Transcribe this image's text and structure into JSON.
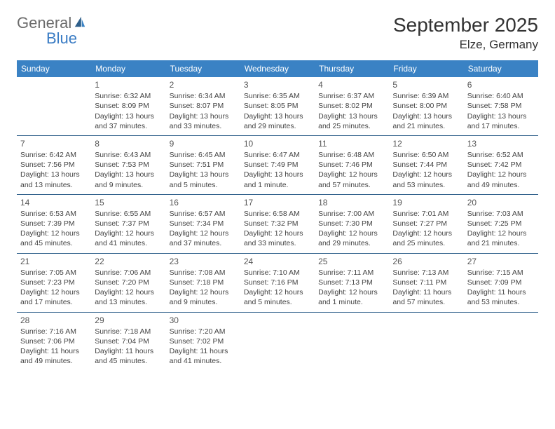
{
  "brand": {
    "part1": "General",
    "part2": "Blue"
  },
  "title": "September 2025",
  "location": "Elze, Germany",
  "colors": {
    "header_bg": "#3a82c4",
    "header_text": "#ffffff",
    "separator": "#2e5f8a",
    "body_text": "#444444",
    "brand_gray": "#6b6b6b",
    "brand_blue": "#3a7cc4"
  },
  "day_headers": [
    "Sunday",
    "Monday",
    "Tuesday",
    "Wednesday",
    "Thursday",
    "Friday",
    "Saturday"
  ],
  "weeks": [
    [
      null,
      {
        "n": "1",
        "sr": "Sunrise: 6:32 AM",
        "ss": "Sunset: 8:09 PM",
        "d1": "Daylight: 13 hours",
        "d2": "and 37 minutes."
      },
      {
        "n": "2",
        "sr": "Sunrise: 6:34 AM",
        "ss": "Sunset: 8:07 PM",
        "d1": "Daylight: 13 hours",
        "d2": "and 33 minutes."
      },
      {
        "n": "3",
        "sr": "Sunrise: 6:35 AM",
        "ss": "Sunset: 8:05 PM",
        "d1": "Daylight: 13 hours",
        "d2": "and 29 minutes."
      },
      {
        "n": "4",
        "sr": "Sunrise: 6:37 AM",
        "ss": "Sunset: 8:02 PM",
        "d1": "Daylight: 13 hours",
        "d2": "and 25 minutes."
      },
      {
        "n": "5",
        "sr": "Sunrise: 6:39 AM",
        "ss": "Sunset: 8:00 PM",
        "d1": "Daylight: 13 hours",
        "d2": "and 21 minutes."
      },
      {
        "n": "6",
        "sr": "Sunrise: 6:40 AM",
        "ss": "Sunset: 7:58 PM",
        "d1": "Daylight: 13 hours",
        "d2": "and 17 minutes."
      }
    ],
    [
      {
        "n": "7",
        "sr": "Sunrise: 6:42 AM",
        "ss": "Sunset: 7:56 PM",
        "d1": "Daylight: 13 hours",
        "d2": "and 13 minutes."
      },
      {
        "n": "8",
        "sr": "Sunrise: 6:43 AM",
        "ss": "Sunset: 7:53 PM",
        "d1": "Daylight: 13 hours",
        "d2": "and 9 minutes."
      },
      {
        "n": "9",
        "sr": "Sunrise: 6:45 AM",
        "ss": "Sunset: 7:51 PM",
        "d1": "Daylight: 13 hours",
        "d2": "and 5 minutes."
      },
      {
        "n": "10",
        "sr": "Sunrise: 6:47 AM",
        "ss": "Sunset: 7:49 PM",
        "d1": "Daylight: 13 hours",
        "d2": "and 1 minute."
      },
      {
        "n": "11",
        "sr": "Sunrise: 6:48 AM",
        "ss": "Sunset: 7:46 PM",
        "d1": "Daylight: 12 hours",
        "d2": "and 57 minutes."
      },
      {
        "n": "12",
        "sr": "Sunrise: 6:50 AM",
        "ss": "Sunset: 7:44 PM",
        "d1": "Daylight: 12 hours",
        "d2": "and 53 minutes."
      },
      {
        "n": "13",
        "sr": "Sunrise: 6:52 AM",
        "ss": "Sunset: 7:42 PM",
        "d1": "Daylight: 12 hours",
        "d2": "and 49 minutes."
      }
    ],
    [
      {
        "n": "14",
        "sr": "Sunrise: 6:53 AM",
        "ss": "Sunset: 7:39 PM",
        "d1": "Daylight: 12 hours",
        "d2": "and 45 minutes."
      },
      {
        "n": "15",
        "sr": "Sunrise: 6:55 AM",
        "ss": "Sunset: 7:37 PM",
        "d1": "Daylight: 12 hours",
        "d2": "and 41 minutes."
      },
      {
        "n": "16",
        "sr": "Sunrise: 6:57 AM",
        "ss": "Sunset: 7:34 PM",
        "d1": "Daylight: 12 hours",
        "d2": "and 37 minutes."
      },
      {
        "n": "17",
        "sr": "Sunrise: 6:58 AM",
        "ss": "Sunset: 7:32 PM",
        "d1": "Daylight: 12 hours",
        "d2": "and 33 minutes."
      },
      {
        "n": "18",
        "sr": "Sunrise: 7:00 AM",
        "ss": "Sunset: 7:30 PM",
        "d1": "Daylight: 12 hours",
        "d2": "and 29 minutes."
      },
      {
        "n": "19",
        "sr": "Sunrise: 7:01 AM",
        "ss": "Sunset: 7:27 PM",
        "d1": "Daylight: 12 hours",
        "d2": "and 25 minutes."
      },
      {
        "n": "20",
        "sr": "Sunrise: 7:03 AM",
        "ss": "Sunset: 7:25 PM",
        "d1": "Daylight: 12 hours",
        "d2": "and 21 minutes."
      }
    ],
    [
      {
        "n": "21",
        "sr": "Sunrise: 7:05 AM",
        "ss": "Sunset: 7:23 PM",
        "d1": "Daylight: 12 hours",
        "d2": "and 17 minutes."
      },
      {
        "n": "22",
        "sr": "Sunrise: 7:06 AM",
        "ss": "Sunset: 7:20 PM",
        "d1": "Daylight: 12 hours",
        "d2": "and 13 minutes."
      },
      {
        "n": "23",
        "sr": "Sunrise: 7:08 AM",
        "ss": "Sunset: 7:18 PM",
        "d1": "Daylight: 12 hours",
        "d2": "and 9 minutes."
      },
      {
        "n": "24",
        "sr": "Sunrise: 7:10 AM",
        "ss": "Sunset: 7:16 PM",
        "d1": "Daylight: 12 hours",
        "d2": "and 5 minutes."
      },
      {
        "n": "25",
        "sr": "Sunrise: 7:11 AM",
        "ss": "Sunset: 7:13 PM",
        "d1": "Daylight: 12 hours",
        "d2": "and 1 minute."
      },
      {
        "n": "26",
        "sr": "Sunrise: 7:13 AM",
        "ss": "Sunset: 7:11 PM",
        "d1": "Daylight: 11 hours",
        "d2": "and 57 minutes."
      },
      {
        "n": "27",
        "sr": "Sunrise: 7:15 AM",
        "ss": "Sunset: 7:09 PM",
        "d1": "Daylight: 11 hours",
        "d2": "and 53 minutes."
      }
    ],
    [
      {
        "n": "28",
        "sr": "Sunrise: 7:16 AM",
        "ss": "Sunset: 7:06 PM",
        "d1": "Daylight: 11 hours",
        "d2": "and 49 minutes."
      },
      {
        "n": "29",
        "sr": "Sunrise: 7:18 AM",
        "ss": "Sunset: 7:04 PM",
        "d1": "Daylight: 11 hours",
        "d2": "and 45 minutes."
      },
      {
        "n": "30",
        "sr": "Sunrise: 7:20 AM",
        "ss": "Sunset: 7:02 PM",
        "d1": "Daylight: 11 hours",
        "d2": "and 41 minutes."
      },
      null,
      null,
      null,
      null
    ]
  ]
}
